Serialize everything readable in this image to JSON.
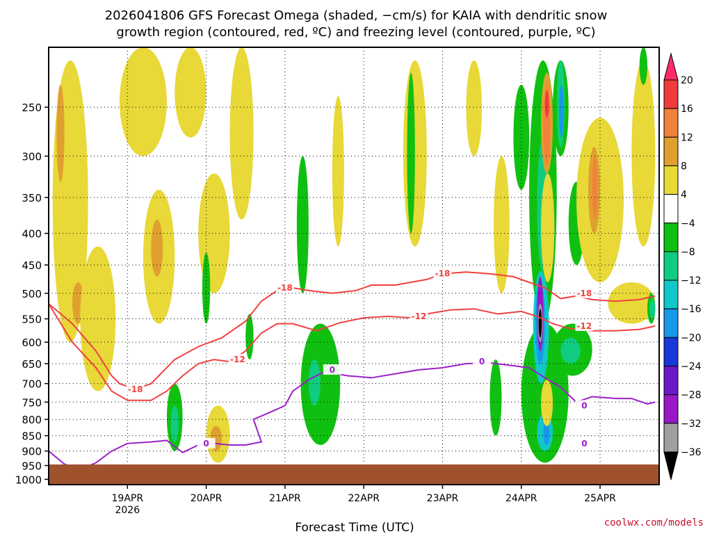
{
  "chart_data": {
    "type": "heatmap",
    "title_line1": "2026041806 GFS Forecast Omega (shaded, −cm/s) for KAIA with dendritic snow",
    "title_line2": "growth region (contoured, red, ºC) and freezing level (contoured, purple, ºC)",
    "xlabel": "Forecast Time (UTC)",
    "credit": "coolwx.com/models",
    "y_axis": {
      "scale": "log-pressure",
      "inverted": true,
      "range": [
        1020,
        200
      ],
      "ticks": [
        250,
        300,
        350,
        400,
        450,
        500,
        550,
        600,
        650,
        700,
        750,
        800,
        850,
        900,
        950,
        1000
      ]
    },
    "x_axis": {
      "range": [
        "2026-04-18 06Z",
        "2026-04-25 18Z"
      ],
      "ticks": [
        {
          "label": "19APR",
          "sub": "2026",
          "day": 1
        },
        {
          "label": "20APR",
          "sub": "",
          "day": 2
        },
        {
          "label": "21APR",
          "sub": "",
          "day": 3
        },
        {
          "label": "22APR",
          "sub": "",
          "day": 4
        },
        {
          "label": "23APR",
          "sub": "",
          "day": 5
        },
        {
          "label": "24APR",
          "sub": "",
          "day": 6
        },
        {
          "label": "25APR",
          "sub": "",
          "day": 7
        }
      ]
    },
    "grid": "dotted",
    "colorbar": {
      "levels": [
        "20",
        "16",
        "12",
        "8",
        "4",
        "−4",
        "−8",
        "−12",
        "−16",
        "−20",
        "−24",
        "−28",
        "−32",
        "−36"
      ],
      "colors": [
        "#ff2a6a",
        "#f03c3c",
        "#f0823c",
        "#e0a030",
        "#e8d838",
        "#ffffff",
        "#10c010",
        "#10cc80",
        "#10c8c8",
        "#1898e8",
        "#1838d8",
        "#6a18c8",
        "#9818c8",
        "#a0a0a0",
        "#000000"
      ]
    },
    "shading": {
      "ground_color": "#a0522d",
      "yellow": "#e8d838",
      "orange": "#e0a030",
      "deep_orange": "#f0823c",
      "red": "#f03c3c",
      "green": "#10c010",
      "teal": "#10cc80",
      "cyan": "#10c8c8",
      "blue": "#1898e8",
      "purple": "#9818c8",
      "gray": "#a0a0a0",
      "black": "#000000"
    },
    "contours": [
      {
        "name": "-18 °C",
        "color": "#f04040",
        "label": "-18",
        "labels_at": [
          [
            1.1,
            715
          ],
          [
            3.0,
            490
          ],
          [
            5.0,
            465
          ],
          [
            6.8,
            500
          ]
        ],
        "points": [
          [
            0,
            520
          ],
          [
            0.3,
            560
          ],
          [
            0.6,
            620
          ],
          [
            0.8,
            680
          ],
          [
            0.9,
            700
          ],
          [
            1.1,
            715
          ],
          [
            1.3,
            700
          ],
          [
            1.6,
            640
          ],
          [
            1.9,
            610
          ],
          [
            2.2,
            590
          ],
          [
            2.5,
            555
          ],
          [
            2.7,
            515
          ],
          [
            2.9,
            495
          ],
          [
            3.1,
            490
          ],
          [
            3.3,
            495
          ],
          [
            3.6,
            500
          ],
          [
            3.9,
            495
          ],
          [
            4.1,
            485
          ],
          [
            4.4,
            485
          ],
          [
            4.8,
            475
          ],
          [
            5.0,
            465
          ],
          [
            5.3,
            462
          ],
          [
            5.6,
            465
          ],
          [
            5.9,
            470
          ],
          [
            6.1,
            480
          ],
          [
            6.3,
            490
          ],
          [
            6.5,
            510
          ],
          [
            6.7,
            505
          ],
          [
            6.9,
            512
          ],
          [
            7.2,
            515
          ],
          [
            7.5,
            512
          ],
          [
            7.7,
            505
          ]
        ]
      },
      {
        "name": "-12 °C",
        "color": "#f04040",
        "label": "-12",
        "labels_at": [
          [
            2.4,
            640
          ],
          [
            4.7,
            545
          ],
          [
            6.8,
            565
          ]
        ],
        "points": [
          [
            0,
            520
          ],
          [
            0.3,
            600
          ],
          [
            0.6,
            660
          ],
          [
            0.8,
            720
          ],
          [
            1.0,
            745
          ],
          [
            1.3,
            745
          ],
          [
            1.5,
            720
          ],
          [
            1.7,
            680
          ],
          [
            1.9,
            650
          ],
          [
            2.1,
            640
          ],
          [
            2.3,
            645
          ],
          [
            2.5,
            620
          ],
          [
            2.7,
            580
          ],
          [
            2.9,
            560
          ],
          [
            3.1,
            560
          ],
          [
            3.4,
            575
          ],
          [
            3.7,
            558
          ],
          [
            4.0,
            548
          ],
          [
            4.3,
            545
          ],
          [
            4.6,
            548
          ],
          [
            4.8,
            540
          ],
          [
            5.1,
            532
          ],
          [
            5.4,
            530
          ],
          [
            5.7,
            540
          ],
          [
            6.0,
            535
          ],
          [
            6.2,
            545
          ],
          [
            6.4,
            560
          ],
          [
            6.6,
            570
          ],
          [
            6.9,
            575
          ],
          [
            7.2,
            575
          ],
          [
            7.5,
            572
          ],
          [
            7.7,
            565
          ]
        ]
      },
      {
        "name": "0 °C",
        "color": "#9a20c8",
        "label": "0",
        "labels_at": [
          [
            2.0,
            875
          ],
          [
            3.6,
            665
          ],
          [
            5.5,
            645
          ],
          [
            6.8,
            760
          ],
          [
            6.8,
            875
          ]
        ],
        "points": [
          [
            0,
            900
          ],
          [
            0.2,
            945
          ],
          [
            0.4,
            965
          ],
          [
            0.6,
            940
          ],
          [
            0.8,
            900
          ],
          [
            1.0,
            875
          ],
          [
            1.3,
            870
          ],
          [
            1.5,
            865
          ],
          [
            1.7,
            905
          ],
          [
            1.9,
            880
          ],
          [
            2.1,
            875
          ],
          [
            2.3,
            880
          ],
          [
            2.5,
            880
          ],
          [
            2.7,
            870
          ],
          [
            2.6,
            800
          ],
          [
            2.8,
            780
          ],
          [
            3.0,
            760
          ],
          [
            3.1,
            720
          ],
          [
            3.3,
            690
          ],
          [
            3.5,
            670
          ],
          [
            3.8,
            680
          ],
          [
            4.1,
            685
          ],
          [
            4.4,
            675
          ],
          [
            4.7,
            665
          ],
          [
            5.0,
            660
          ],
          [
            5.3,
            650
          ],
          [
            5.6,
            648
          ],
          [
            5.9,
            655
          ],
          [
            6.1,
            660
          ],
          [
            6.3,
            685
          ],
          [
            6.5,
            710
          ],
          [
            6.7,
            750
          ],
          [
            6.9,
            735
          ],
          [
            7.2,
            740
          ],
          [
            7.4,
            740
          ],
          [
            7.6,
            755
          ],
          [
            7.7,
            750
          ]
        ]
      }
    ],
    "blobs": [
      {
        "c": "yellow",
        "x0": 0.05,
        "x1": 0.5,
        "p0": 210,
        "p1": 600
      },
      {
        "c": "orange",
        "x0": 0.1,
        "x1": 0.2,
        "p0": 230,
        "p1": 330
      },
      {
        "c": "orange",
        "x0": 0.3,
        "x1": 0.45,
        "p0": 480,
        "p1": 560
      },
      {
        "c": "yellow",
        "x0": 0.4,
        "x1": 0.85,
        "p0": 420,
        "p1": 720
      },
      {
        "c": "yellow",
        "x0": 0.9,
        "x1": 1.5,
        "p0": 200,
        "p1": 300
      },
      {
        "c": "yellow",
        "x0": 1.2,
        "x1": 1.6,
        "p0": 340,
        "p1": 560
      },
      {
        "c": "orange",
        "x0": 1.3,
        "x1": 1.45,
        "p0": 380,
        "p1": 470
      },
      {
        "c": "yellow",
        "x0": 1.6,
        "x1": 2.0,
        "p0": 200,
        "p1": 280
      },
      {
        "c": "yellow",
        "x0": 1.9,
        "x1": 2.3,
        "p0": 320,
        "p1": 500
      },
      {
        "c": "yellow",
        "x0": 2.3,
        "x1": 2.6,
        "p0": 200,
        "p1": 380
      },
      {
        "c": "yellow",
        "x0": 2.0,
        "x1": 2.3,
        "p0": 760,
        "p1": 940
      },
      {
        "c": "orange",
        "x0": 2.05,
        "x1": 2.2,
        "p0": 820,
        "p1": 900
      },
      {
        "c": "green",
        "x0": 1.5,
        "x1": 1.7,
        "p0": 700,
        "p1": 900
      },
      {
        "c": "teal",
        "x0": 1.55,
        "x1": 1.65,
        "p0": 760,
        "p1": 870
      },
      {
        "c": "green",
        "x0": 1.95,
        "x1": 2.05,
        "p0": 430,
        "p1": 560
      },
      {
        "c": "green",
        "x0": 2.5,
        "x1": 2.6,
        "p0": 540,
        "p1": 640
      },
      {
        "c": "green",
        "x0": 3.15,
        "x1": 3.3,
        "p0": 300,
        "p1": 500
      },
      {
        "c": "green",
        "x0": 3.2,
        "x1": 3.7,
        "p0": 560,
        "p1": 880
      },
      {
        "c": "teal",
        "x0": 3.3,
        "x1": 3.45,
        "p0": 640,
        "p1": 760
      },
      {
        "c": "yellow",
        "x0": 3.6,
        "x1": 3.75,
        "p0": 240,
        "p1": 420
      },
      {
        "c": "yellow",
        "x0": 4.5,
        "x1": 4.8,
        "p0": 210,
        "p1": 420
      },
      {
        "c": "yellow",
        "x0": 5.3,
        "x1": 5.5,
        "p0": 210,
        "p1": 300
      },
      {
        "c": "green",
        "x0": 4.55,
        "x1": 4.65,
        "p0": 220,
        "p1": 400
      },
      {
        "c": "green",
        "x0": 5.6,
        "x1": 5.75,
        "p0": 640,
        "p1": 850
      },
      {
        "c": "yellow",
        "x0": 5.65,
        "x1": 5.85,
        "p0": 300,
        "p1": 500
      },
      {
        "c": "green",
        "x0": 5.9,
        "x1": 6.1,
        "p0": 230,
        "p1": 340
      },
      {
        "c": "green",
        "x0": 6.0,
        "x1": 6.6,
        "p0": 560,
        "p1": 940
      },
      {
        "c": "green",
        "x0": 6.1,
        "x1": 6.45,
        "p0": 210,
        "p1": 560
      },
      {
        "c": "teal",
        "x0": 6.2,
        "x1": 6.35,
        "p0": 280,
        "p1": 460
      },
      {
        "c": "cyan",
        "x0": 6.15,
        "x1": 6.35,
        "p0": 460,
        "p1": 700
      },
      {
        "c": "blue",
        "x0": 6.18,
        "x1": 6.3,
        "p0": 480,
        "p1": 650
      },
      {
        "c": "purple",
        "x0": 6.2,
        "x1": 6.28,
        "p0": 470,
        "p1": 620
      },
      {
        "c": "gray",
        "x0": 6.21,
        "x1": 6.27,
        "p0": 520,
        "p1": 600
      },
      {
        "c": "black",
        "x0": 6.22,
        "x1": 6.26,
        "p0": 530,
        "p1": 590
      },
      {
        "c": "cyan",
        "x0": 6.2,
        "x1": 6.4,
        "p0": 780,
        "p1": 900
      },
      {
        "c": "blue",
        "x0": 6.28,
        "x1": 6.36,
        "p0": 800,
        "p1": 880
      },
      {
        "c": "orange",
        "x0": 6.25,
        "x1": 6.4,
        "p0": 220,
        "p1": 320
      },
      {
        "c": "deep_orange",
        "x0": 6.28,
        "x1": 6.37,
        "p0": 230,
        "p1": 310
      },
      {
        "c": "red",
        "x0": 6.3,
        "x1": 6.35,
        "p0": 235,
        "p1": 260
      },
      {
        "c": "yellow",
        "x0": 6.25,
        "x1": 6.42,
        "p0": 320,
        "p1": 480
      },
      {
        "c": "orange",
        "x0": 6.3,
        "x1": 6.4,
        "p0": 720,
        "p1": 800
      },
      {
        "c": "yellow",
        "x0": 6.25,
        "x1": 6.4,
        "p0": 690,
        "p1": 820
      },
      {
        "c": "green",
        "x0": 6.4,
        "x1": 6.6,
        "p0": 210,
        "p1": 300
      },
      {
        "c": "teal",
        "x0": 6.45,
        "x1": 6.55,
        "p0": 210,
        "p1": 290
      },
      {
        "c": "blue",
        "x0": 6.48,
        "x1": 6.54,
        "p0": 230,
        "p1": 280
      },
      {
        "c": "green",
        "x0": 6.6,
        "x1": 6.8,
        "p0": 330,
        "p1": 450
      },
      {
        "c": "green",
        "x0": 6.4,
        "x1": 6.9,
        "p0": 560,
        "p1": 680
      },
      {
        "c": "teal",
        "x0": 6.5,
        "x1": 6.75,
        "p0": 590,
        "p1": 650
      },
      {
        "c": "yellow",
        "x0": 6.7,
        "x1": 7.3,
        "p0": 260,
        "p1": 480
      },
      {
        "c": "orange",
        "x0": 6.85,
        "x1": 7.0,
        "p0": 290,
        "p1": 400
      },
      {
        "c": "deep_orange",
        "x0": 6.9,
        "x1": 6.97,
        "p0": 300,
        "p1": 380
      },
      {
        "c": "yellow",
        "x0": 7.1,
        "x1": 7.7,
        "p0": 480,
        "p1": 560
      },
      {
        "c": "yellow",
        "x0": 7.4,
        "x1": 7.7,
        "p0": 210,
        "p1": 420
      },
      {
        "c": "green",
        "x0": 7.6,
        "x1": 7.7,
        "p0": 500,
        "p1": 560
      },
      {
        "c": "teal",
        "x0": 7.63,
        "x1": 7.7,
        "p0": 510,
        "p1": 550
      },
      {
        "c": "green",
        "x0": 7.5,
        "x1": 7.6,
        "p0": 200,
        "p1": 230
      }
    ]
  }
}
